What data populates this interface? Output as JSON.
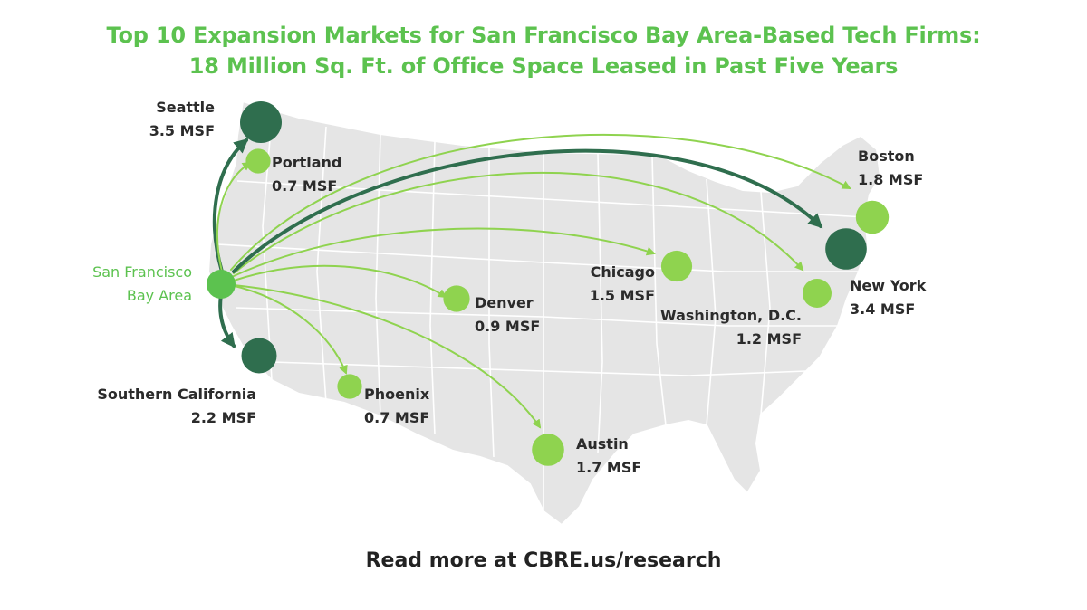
{
  "title_line1": "Top 10 Expansion Markets for San Francisco Bay Area-Based Tech Firms:",
  "title_line2": "18 Million Sq. Ft. of Office Space Leased in Past Five Years",
  "footer": "Read more at CBRE.us/research",
  "colors": {
    "map_fill": "#e5e5e5",
    "map_lines": "#ffffff",
    "light_green": "#8fd34f",
    "dark_green": "#2f6e4e",
    "origin_green": "#5cc24f",
    "title_green": "#5cc24f"
  },
  "origin": {
    "name1": "San Francisco",
    "name2": "Bay Area"
  },
  "markets": [
    {
      "id": "seattle",
      "name": "Seattle",
      "value": "3.5 MSF",
      "msf": 3.5
    },
    {
      "id": "portland",
      "name": "Portland",
      "value": "0.7 MSF",
      "msf": 0.7
    },
    {
      "id": "southern-california",
      "name": "Southern California",
      "value": "2.2 MSF",
      "msf": 2.2
    },
    {
      "id": "phoenix",
      "name": "Phoenix",
      "value": "0.7 MSF",
      "msf": 0.7
    },
    {
      "id": "denver",
      "name": "Denver",
      "value": "0.9 MSF",
      "msf": 0.9
    },
    {
      "id": "austin",
      "name": "Austin",
      "value": "1.7 MSF",
      "msf": 1.7
    },
    {
      "id": "chicago",
      "name": "Chicago",
      "value": "1.5 MSF",
      "msf": 1.5
    },
    {
      "id": "washington-dc",
      "name": "Washington, D.C.",
      "value": "1.2 MSF",
      "msf": 1.2
    },
    {
      "id": "new-york",
      "name": "New York",
      "value": "3.4 MSF",
      "msf": 3.4
    },
    {
      "id": "boston",
      "name": "Boston",
      "value": "1.8 MSF",
      "msf": 1.8
    }
  ]
}
